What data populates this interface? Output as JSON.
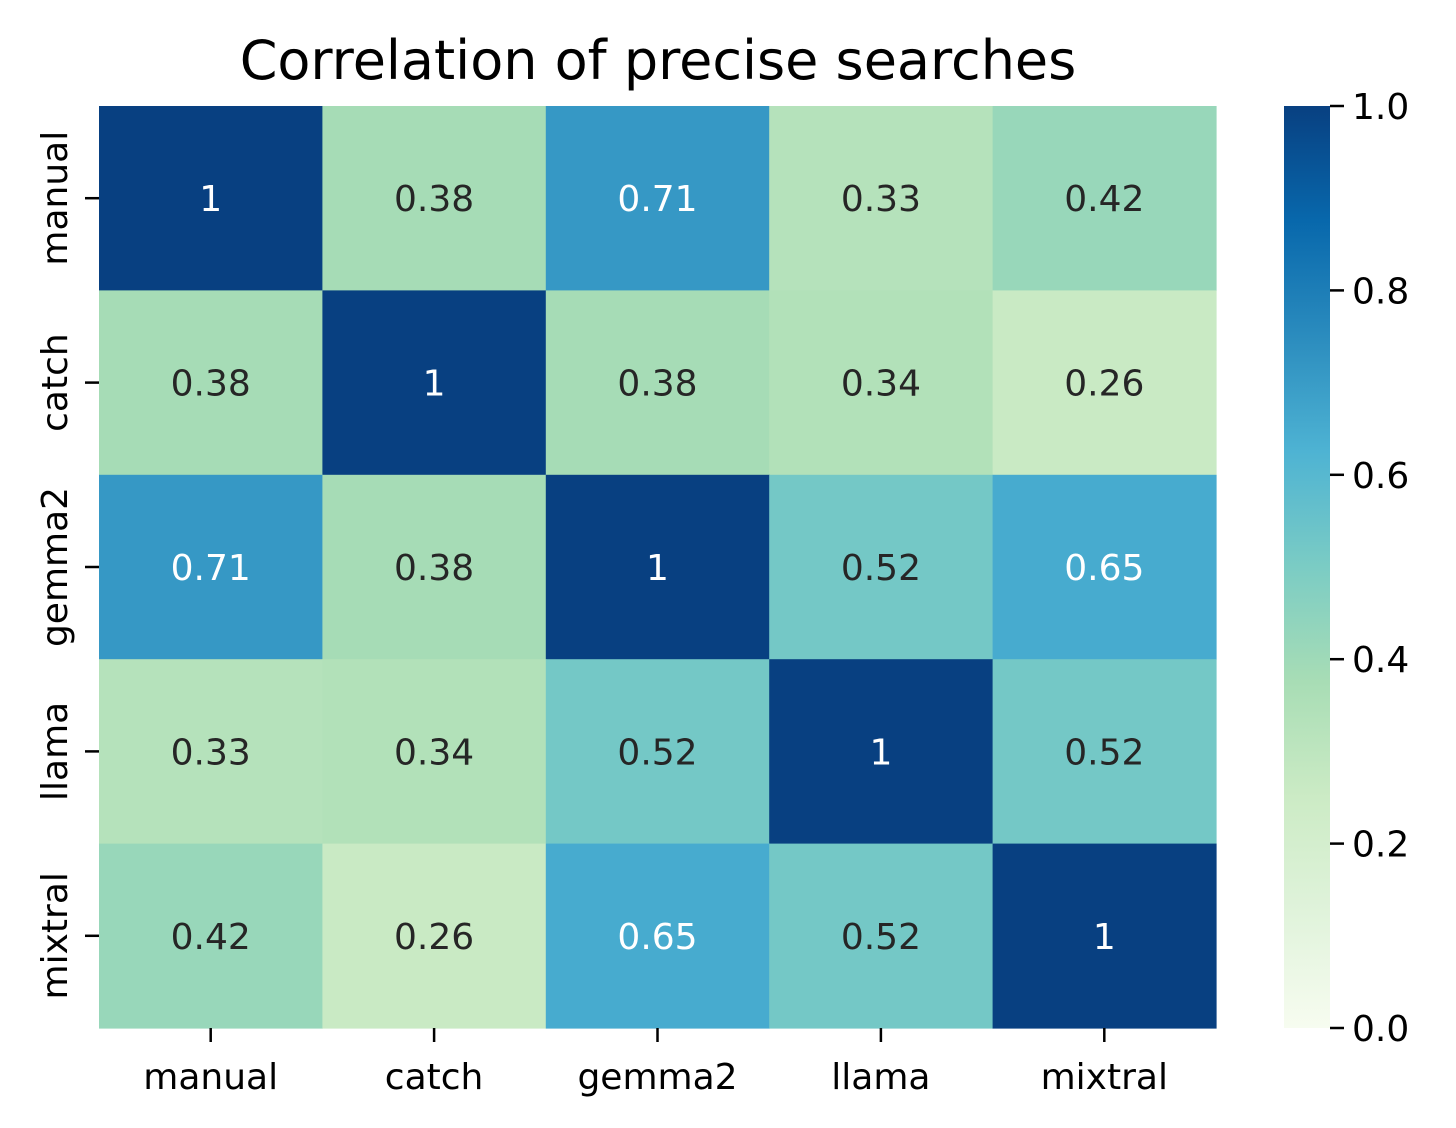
{
  "chart_data": {
    "type": "heatmap",
    "title": "Correlation of precise searches",
    "x_categories": [
      "manual",
      "catch",
      "gemma2",
      "llama",
      "mixtral"
    ],
    "y_categories": [
      "manual",
      "catch",
      "gemma2",
      "llama",
      "mixtral"
    ],
    "values": [
      [
        1.0,
        0.38,
        0.71,
        0.33,
        0.42
      ],
      [
        0.38,
        1.0,
        0.38,
        0.34,
        0.26
      ],
      [
        0.71,
        0.38,
        1.0,
        0.52,
        0.65
      ],
      [
        0.33,
        0.34,
        0.52,
        1.0,
        0.52
      ],
      [
        0.42,
        0.26,
        0.65,
        0.52,
        1.0
      ]
    ],
    "annotations": [
      [
        "1",
        "0.38",
        "0.71",
        "0.33",
        "0.42"
      ],
      [
        "0.38",
        "1",
        "0.38",
        "0.34",
        "0.26"
      ],
      [
        "0.71",
        "0.38",
        "1",
        "0.52",
        "0.65"
      ],
      [
        "0.33",
        "0.34",
        "0.52",
        "1",
        "0.52"
      ],
      [
        "0.42",
        "0.26",
        "0.65",
        "0.52",
        "1"
      ]
    ],
    "colormap": "GnBu",
    "vmin": 0.0,
    "vmax": 1.0,
    "colorbar_ticks": [
      0.0,
      0.2,
      0.4,
      0.6,
      0.8,
      1.0
    ],
    "colorbar_tick_labels": [
      "0.0",
      "0.2",
      "0.4",
      "0.6",
      "0.8",
      "1.0"
    ],
    "annotation_colors": {
      "dark": "#262626",
      "light": "#ffffff"
    }
  }
}
